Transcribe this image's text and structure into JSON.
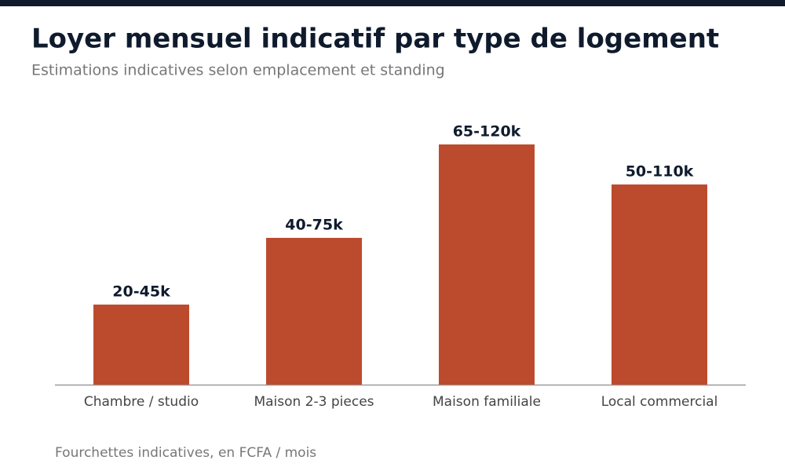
{
  "chart_data": {
    "type": "bar",
    "title": "Loyer mensuel indicatif par type de logement",
    "subtitle": "Estimations indicatives selon emplacement et standing",
    "note": "Fourchettes indicatives, en FCFA / mois",
    "categories": [
      "Chambre / studio",
      "Maison 2-3 pieces",
      "Maison familiale",
      "Local commercial"
    ],
    "values": [
      30,
      55,
      90,
      75
    ],
    "value_labels": [
      "20-45k",
      "40-75k",
      "65-120k",
      "50-110k"
    ],
    "color": "#bc4b2e",
    "ylim": [
      0,
      100
    ]
  }
}
